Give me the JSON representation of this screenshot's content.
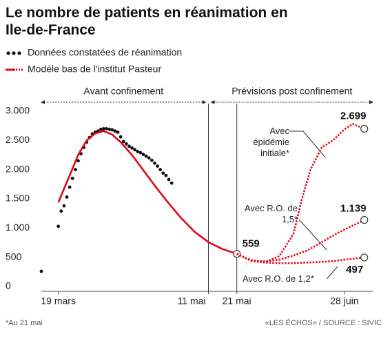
{
  "chart_data": {
    "type": "line",
    "title": "Le nombre de patients en réanimation en Ile-de-France",
    "annotations": [
      "Avant confinement",
      "Prévisions post confinement"
    ],
    "note": "*Au 21 mai",
    "source": "«LES ÉCHOS» / SOURCE : SIVIC",
    "xlim": [
      "03-13",
      "07-08"
    ],
    "xticks": [
      {
        "value": "03-19",
        "label": "19 mars"
      },
      {
        "value": "05-11",
        "label": "11 mai"
      },
      {
        "value": "05-21",
        "label": "21 mai"
      },
      {
        "value": "06-28",
        "label": "28 juin"
      }
    ],
    "ylim": [
      0,
      3000
    ],
    "yticks": [
      0,
      {
        "value": 500,
        "label": "500"
      },
      {
        "value": 1000,
        "label": "1.000"
      },
      {
        "value": 1500,
        "label": "1.500"
      },
      {
        "value": 2000,
        "label": "2.000"
      },
      {
        "value": 2500,
        "label": "2.500"
      },
      {
        "value": 3000,
        "label": "3.000"
      }
    ],
    "series": [
      {
        "name": "Données constatées de réanimation",
        "color": "#111111",
        "style": "dots",
        "legend": true,
        "x": [
          "03-13",
          "03-19",
          "03-20",
          "03-21",
          "03-22",
          "03-23",
          "03-24",
          "03-25",
          "03-26",
          "03-27",
          "03-28",
          "03-29",
          "03-30",
          "03-31",
          "04-01",
          "04-02",
          "04-03",
          "04-04",
          "04-05",
          "04-06",
          "04-07",
          "04-08",
          "04-09",
          "04-10",
          "04-11",
          "04-12",
          "04-13",
          "04-14",
          "04-15",
          "04-16",
          "04-17",
          "04-18",
          "04-19",
          "04-20",
          "04-21",
          "04-22",
          "04-23",
          "04-24",
          "04-25",
          "04-26",
          "04-27",
          "04-28"
        ],
        "values": [
          260,
          1030,
          1290,
          1380,
          1530,
          1700,
          1850,
          2000,
          2150,
          2270,
          2380,
          2470,
          2550,
          2610,
          2640,
          2660,
          2690,
          2700,
          2700,
          2690,
          2680,
          2660,
          2640,
          2560,
          2480,
          2440,
          2400,
          2370,
          2340,
          2310,
          2290,
          2260,
          2230,
          2200,
          2160,
          2110,
          2060,
          2000,
          1940,
          1900,
          1830,
          1770
        ]
      },
      {
        "name": "Modèle bas de l'institut Pasteur",
        "color": "#e30613",
        "style": "solid",
        "legend": true,
        "x": [
          "03-19",
          "03-23",
          "03-26",
          "03-29",
          "04-01",
          "04-04",
          "04-07",
          "04-10",
          "04-14",
          "04-18",
          "04-22",
          "04-26",
          "05-01",
          "05-06",
          "05-11",
          "05-16",
          "05-21"
        ],
        "values": [
          1440,
          1900,
          2250,
          2500,
          2620,
          2660,
          2600,
          2470,
          2250,
          1990,
          1730,
          1480,
          1190,
          940,
          760,
          640,
          559
        ],
        "value_labels": [
          null,
          null,
          null,
          null,
          null,
          null,
          null,
          null,
          null,
          null,
          null,
          null,
          null,
          null,
          null,
          null,
          "559"
        ]
      },
      {
        "name": "Avec épidémie initiale*",
        "color": "#e30613",
        "style": "dotted",
        "legend": false,
        "x": [
          "05-21",
          "05-26",
          "05-31",
          "06-05",
          "06-10",
          "06-13",
          "06-16",
          "06-20",
          "06-24",
          "06-28",
          "07-01",
          "07-05"
        ],
        "values": [
          559,
          440,
          420,
          520,
          900,
          1500,
          2000,
          2380,
          2500,
          2690,
          2780,
          2699
        ],
        "value_labels": [
          null,
          null,
          null,
          null,
          null,
          null,
          null,
          null,
          null,
          null,
          null,
          "2.699"
        ]
      },
      {
        "name": "Avec R.O. de 1,5*",
        "color": "#e30613",
        "style": "dotted",
        "legend": false,
        "x": [
          "05-21",
          "05-26",
          "05-31",
          "06-05",
          "06-10",
          "06-15",
          "06-20",
          "06-25",
          "06-30",
          "07-05"
        ],
        "values": [
          559,
          450,
          430,
          460,
          530,
          620,
          760,
          900,
          1020,
          1139
        ],
        "value_labels": [
          null,
          null,
          null,
          null,
          null,
          null,
          null,
          null,
          null,
          "1.139"
        ]
      },
      {
        "name": "Avec R.O. de 1,2*",
        "color": "#e30613",
        "style": "dotted",
        "legend": false,
        "x": [
          "05-21",
          "05-26",
          "05-31",
          "06-05",
          "06-10",
          "06-15",
          "06-20",
          "06-25",
          "06-30",
          "07-05"
        ],
        "values": [
          559,
          440,
          410,
          400,
          400,
          410,
          420,
          440,
          470,
          497
        ],
        "value_labels": [
          null,
          null,
          null,
          null,
          null,
          null,
          null,
          null,
          null,
          "497"
        ]
      }
    ]
  }
}
